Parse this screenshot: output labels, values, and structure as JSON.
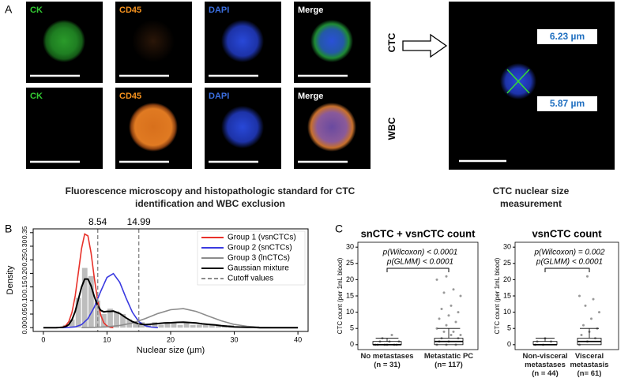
{
  "panel_a": {
    "label": "A",
    "rows": [
      {
        "name": "CTC",
        "channels": [
          "CK",
          "CD45",
          "DAPI",
          "Merge"
        ]
      },
      {
        "name": "WBC",
        "channels": [
          "CK",
          "CD45",
          "DAPI",
          "Merge"
        ]
      }
    ],
    "measurements": [
      "6.23 µm",
      "5.87 µm"
    ],
    "caption_left": "Fluorescence microscopy and histopathologic standard for CTC identification and WBC exclusion",
    "caption_right": "CTC nuclear size measurement"
  },
  "chart_data": [
    {
      "panel": "B",
      "type": "line",
      "xlabel": "Nuclear size (µm)",
      "ylabel": "Density",
      "xlim": [
        -1.6,
        41.6
      ],
      "ylim": [
        -0.014,
        0.364
      ],
      "xticks": [
        0,
        10,
        20,
        30,
        40
      ],
      "yticks": [
        {
          "value": 0,
          "label": "0.00"
        },
        0.05,
        {
          "value": 0.1,
          "label": "0.10"
        },
        0.15,
        {
          "value": 0.2,
          "label": "0.20"
        },
        0.25,
        {
          "value": 0.3,
          "label": "0.30"
        },
        0.35
      ],
      "histogram": {
        "color": "#bdbdbd",
        "bins": [
          2,
          3,
          4,
          5,
          6,
          7,
          8,
          9,
          10,
          11,
          12,
          13,
          14,
          15,
          16,
          17,
          18,
          19,
          20,
          21,
          22,
          23,
          24,
          25,
          26,
          27,
          28,
          29,
          30,
          31,
          32,
          33,
          34
        ],
        "counts": [
          0,
          0.01,
          0.03,
          0.11,
          0.22,
          0.19,
          0.1,
          0.05,
          0.07,
          0.06,
          0.05,
          0.03,
          0.02,
          0.02,
          0.01,
          0.02,
          0.01,
          0.02,
          0.02,
          0.01,
          0.02,
          0.01,
          0.01,
          0.01,
          0.01,
          0.01,
          0.01,
          0.01,
          0.005,
          0.005,
          0,
          0.005
        ]
      },
      "series": [
        {
          "name": "Group 1 (vsnCTCs)",
          "color": "#e8312a",
          "x": [
            2,
            3,
            3.5,
            4,
            4.5,
            5,
            5.5,
            6,
            6.5,
            7,
            7.5,
            8,
            8.5,
            9,
            9.5,
            10,
            10.5,
            11
          ],
          "values": [
            0,
            0.002,
            0.007,
            0.022,
            0.056,
            0.117,
            0.203,
            0.291,
            0.345,
            0.338,
            0.275,
            0.185,
            0.103,
            0.047,
            0.018,
            0.006,
            0.001,
            0
          ]
        },
        {
          "name": "Group 2 (snCTCs)",
          "color": "#3a3ae0",
          "x": [
            2,
            3,
            4,
            5,
            6,
            7,
            8,
            9,
            10,
            11,
            12,
            13,
            14,
            15,
            16,
            17,
            18
          ],
          "values": [
            0,
            0,
            0.001,
            0.003,
            0.011,
            0.033,
            0.075,
            0.133,
            0.185,
            0.199,
            0.167,
            0.109,
            0.056,
            0.022,
            0.007,
            0.002,
            0
          ]
        },
        {
          "name": "Group 3 (lnCTCs)",
          "color": "#8c8c8c",
          "x": [
            6,
            8,
            10,
            12,
            14,
            16,
            18,
            20,
            22,
            24,
            26,
            28,
            30,
            32,
            34,
            36,
            38,
            40
          ],
          "values": [
            0,
            0.001,
            0.003,
            0.008,
            0.017,
            0.033,
            0.052,
            0.066,
            0.07,
            0.06,
            0.042,
            0.025,
            0.012,
            0.005,
            0.001,
            0,
            0,
            0
          ]
        },
        {
          "name": "Gaussian mixture",
          "color": "#000000",
          "x": [
            0,
            2,
            3,
            3.5,
            4,
            4.5,
            5,
            5.5,
            6,
            6.5,
            7,
            7.5,
            8,
            8.5,
            9,
            9.5,
            10,
            10.5,
            11,
            12,
            13,
            14,
            15,
            16,
            17,
            18,
            19,
            20,
            21,
            22,
            23,
            24,
            25,
            26,
            27,
            28,
            29,
            30,
            31,
            32,
            33,
            34,
            35,
            36,
            37,
            38,
            39,
            40
          ],
          "values": [
            0,
            0,
            0.001,
            0.004,
            0.011,
            0.029,
            0.06,
            0.104,
            0.149,
            0.179,
            0.179,
            0.154,
            0.115,
            0.083,
            0.064,
            0.058,
            0.06,
            0.06,
            0.061,
            0.052,
            0.036,
            0.022,
            0.014,
            0.011,
            0.013,
            0.015,
            0.017,
            0.018,
            0.0195,
            0.02,
            0.019,
            0.017,
            0.014,
            0.012,
            0.01,
            0.007,
            0.005,
            0.003,
            0.002,
            0.001,
            0.001,
            0,
            0,
            0,
            0,
            0,
            0,
            0
          ]
        }
      ],
      "cutoffs": {
        "name": "Cutoff values",
        "color": "#8c8c8c",
        "values": [
          8.54,
          14.99
        ]
      }
    },
    {
      "panel": "C",
      "type": "box",
      "title": "snCTC + vsnCTC count",
      "ylabel": "CTC count (per 1mL blood)",
      "ylim": [
        -1.5,
        31.5
      ],
      "yticks": [
        0,
        5,
        10,
        15,
        20,
        25,
        30
      ],
      "annotations": [
        "p(Wilcoxon) < 0.0001",
        "p(GLMM) < 0.0001"
      ],
      "categories": [
        "No metastases",
        "Metastatic PC"
      ],
      "category_counts": [
        "(n = 31)",
        "(n= 117)"
      ],
      "boxes": [
        {
          "q1": 0,
          "median": 0,
          "q3": 1,
          "whisker_high": 2,
          "points": [
            0,
            0,
            0,
            0,
            0,
            0,
            1,
            1,
            1,
            2,
            3
          ]
        },
        {
          "q1": 0,
          "median": 1,
          "q3": 2,
          "whisker_high": 5,
          "points": [
            0,
            0,
            0,
            1,
            1,
            2,
            2,
            3,
            3,
            4,
            4,
            5,
            6,
            7,
            8,
            9,
            10,
            11,
            12,
            15,
            16,
            17,
            20,
            21
          ]
        }
      ]
    },
    {
      "type": "box",
      "title": "vsnCTC count",
      "ylabel": "CTC count (per 1mL blood)",
      "ylim": [
        -1.5,
        31.5
      ],
      "yticks": [
        0,
        5,
        10,
        15,
        20,
        25,
        30
      ],
      "annotations": [
        "p(Wilcoxon) = 0.002",
        "p(GLMM) < 0.0001"
      ],
      "categories": [
        "Non-visceral metastases",
        "Visceral metastasis"
      ],
      "category_counts": [
        "(n = 44)",
        "(n= 61)"
      ],
      "boxes": [
        {
          "q1": 0,
          "median": 0,
          "q3": 1,
          "whisker_high": 2,
          "points": [
            0,
            0,
            1,
            1,
            2
          ]
        },
        {
          "q1": 0,
          "median": 1,
          "q3": 2,
          "whisker_high": 5,
          "points": [
            0,
            1,
            2,
            3,
            4,
            5,
            6,
            8,
            10,
            12,
            14,
            15,
            21
          ]
        }
      ]
    }
  ]
}
